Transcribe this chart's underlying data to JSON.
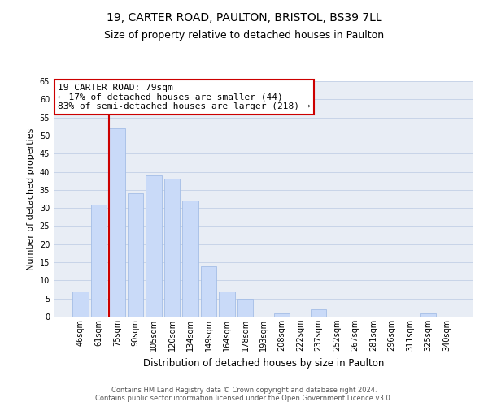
{
  "title": "19, CARTER ROAD, PAULTON, BRISTOL, BS39 7LL",
  "subtitle": "Size of property relative to detached houses in Paulton",
  "xlabel": "Distribution of detached houses by size in Paulton",
  "ylabel": "Number of detached properties",
  "bar_labels": [
    "46sqm",
    "61sqm",
    "75sqm",
    "90sqm",
    "105sqm",
    "120sqm",
    "134sqm",
    "149sqm",
    "164sqm",
    "178sqm",
    "193sqm",
    "208sqm",
    "222sqm",
    "237sqm",
    "252sqm",
    "267sqm",
    "281sqm",
    "296sqm",
    "311sqm",
    "325sqm",
    "340sqm"
  ],
  "bar_heights": [
    7,
    31,
    52,
    34,
    39,
    38,
    32,
    14,
    7,
    5,
    0,
    1,
    0,
    2,
    0,
    0,
    0,
    0,
    0,
    1,
    0
  ],
  "bar_color": "#c9daf8",
  "bar_edge_color": "#a4bde6",
  "grid_color": "#c8d4e8",
  "property_line_index": 2,
  "annotation_title": "19 CARTER ROAD: 79sqm",
  "annotation_line1": "← 17% of detached houses are smaller (44)",
  "annotation_line2": "83% of semi-detached houses are larger (218) →",
  "annotation_box_color": "#ffffff",
  "annotation_box_edge": "#cc0000",
  "vline_color": "#cc0000",
  "ylim": [
    0,
    65
  ],
  "yticks": [
    0,
    5,
    10,
    15,
    20,
    25,
    30,
    35,
    40,
    45,
    50,
    55,
    60,
    65
  ],
  "footer_line1": "Contains HM Land Registry data © Crown copyright and database right 2024.",
  "footer_line2": "Contains public sector information licensed under the Open Government Licence v3.0.",
  "bg_color": "#ffffff",
  "axes_bg_color": "#e8edf5",
  "title_fontsize": 10,
  "subtitle_fontsize": 9,
  "ylabel_fontsize": 8,
  "xlabel_fontsize": 8.5,
  "tick_fontsize": 7,
  "annotation_fontsize": 8,
  "footer_fontsize": 6
}
